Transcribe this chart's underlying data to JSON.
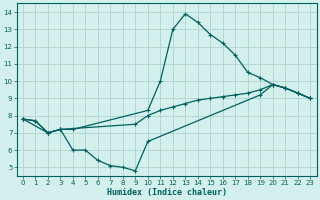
{
  "xlabel": "Humidex (Indice chaleur)",
  "bg_color": "#d4f0ec",
  "grid_color": "#aed4cc",
  "line_color": "#006060",
  "xlim": [
    -0.5,
    23.5
  ],
  "ylim": [
    4.5,
    14.5
  ],
  "xticks": [
    0,
    1,
    2,
    3,
    4,
    5,
    6,
    7,
    8,
    9,
    10,
    11,
    12,
    13,
    14,
    15,
    16,
    17,
    18,
    19,
    20,
    21,
    22,
    23
  ],
  "yticks": [
    5,
    6,
    7,
    8,
    9,
    10,
    11,
    12,
    13,
    14
  ],
  "line1_x": [
    0,
    1,
    2,
    3,
    4,
    10,
    11,
    12,
    13,
    14,
    15,
    16,
    17,
    18,
    19,
    20,
    21,
    22,
    23
  ],
  "line1_y": [
    7.8,
    7.7,
    7.0,
    7.2,
    7.2,
    8.3,
    10.0,
    13.0,
    13.9,
    13.4,
    12.7,
    12.2,
    11.5,
    10.5,
    10.2,
    9.8,
    9.6,
    9.3,
    9.0
  ],
  "line2_x": [
    0,
    2,
    3,
    4,
    5,
    6,
    7,
    8,
    9,
    10,
    19,
    20,
    21,
    22,
    23
  ],
  "line2_y": [
    7.8,
    7.0,
    7.2,
    6.0,
    6.0,
    5.4,
    5.1,
    5.0,
    4.8,
    6.5,
    9.2,
    9.8,
    9.6,
    9.3,
    9.0
  ],
  "line3_x": [
    0,
    1,
    2,
    3,
    9,
    10,
    11,
    12,
    13,
    14,
    15,
    16,
    17,
    18,
    19,
    20,
    21,
    22,
    23
  ],
  "line3_y": [
    7.8,
    7.7,
    7.0,
    7.2,
    7.5,
    8.0,
    8.3,
    8.5,
    8.7,
    8.9,
    9.0,
    9.1,
    9.2,
    9.3,
    9.5,
    9.8,
    9.6,
    9.3,
    9.0
  ]
}
